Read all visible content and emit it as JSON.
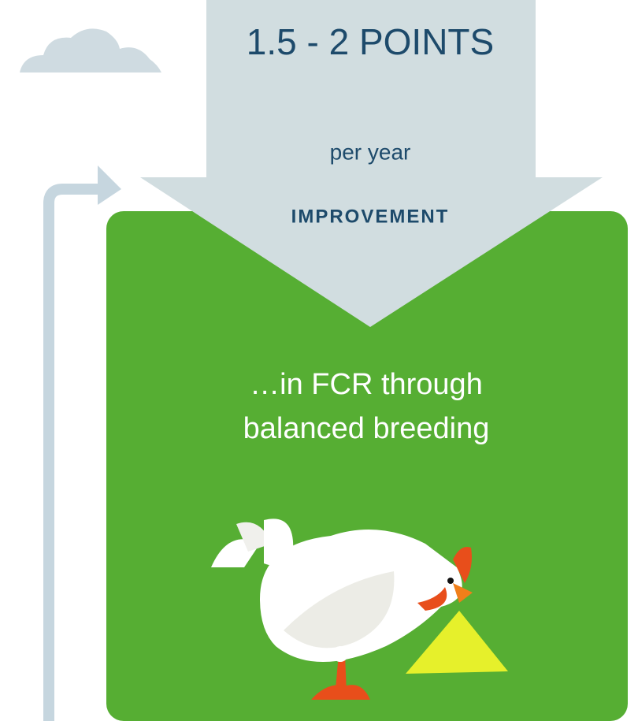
{
  "arrow": {
    "headline": "1.5 - 2 POINTS",
    "subline": "per year",
    "label": "IMPROVEMENT"
  },
  "box": {
    "lines": [
      "…in FCR through",
      "balanced breeding"
    ]
  }
}
